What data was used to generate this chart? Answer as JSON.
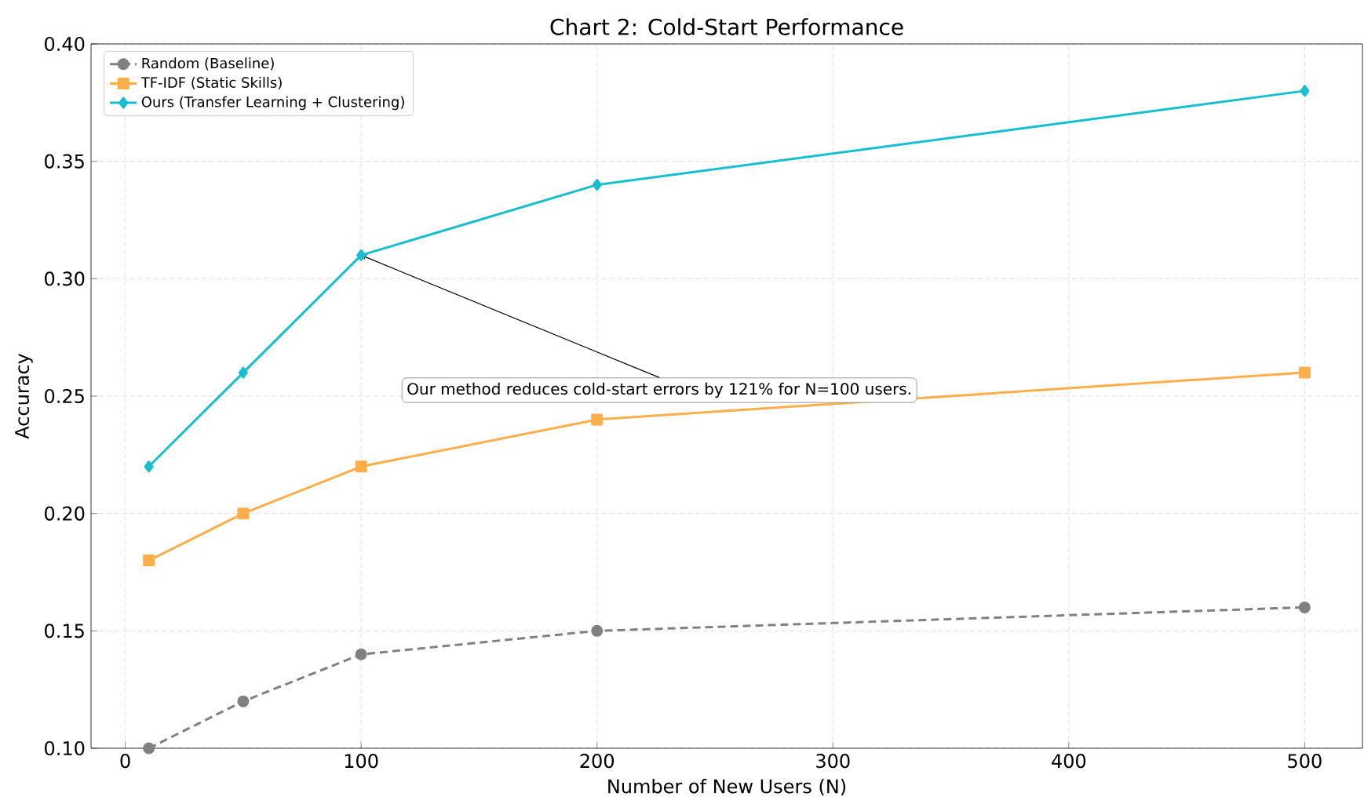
{
  "chart_data": {
    "type": "line",
    "title": "Chart 2: Cold-Start Performance",
    "xlabel": "Number of New Users (N)",
    "ylabel": "Accuracy",
    "x": [
      10,
      50,
      100,
      200,
      500
    ],
    "series": [
      {
        "name": "Random (Baseline)",
        "color": "#808080",
        "values": [
          0.1,
          0.12,
          0.14,
          0.15,
          0.16
        ],
        "marker": "circle",
        "line_style": "dashed"
      },
      {
        "name": "TF-IDF (Static Skills)",
        "color": "#ffae49",
        "values": [
          0.18,
          0.2,
          0.22,
          0.24,
          0.26
        ],
        "marker": "square",
        "line_style": "solid"
      },
      {
        "name": "Ours (Transfer Learning + Clustering)",
        "color": "#17becf",
        "values": [
          0.22,
          0.26,
          0.31,
          0.34,
          0.38
        ],
        "marker": "diamond",
        "line_style": "solid"
      }
    ],
    "xlim": [
      -14.5,
      524.5
    ],
    "ylim": [
      0.1,
      0.4
    ],
    "xticks": [
      0,
      100,
      200,
      300,
      400,
      500
    ],
    "yticks": [
      {
        "value": 0.1,
        "label": "0.10"
      },
      {
        "value": 0.15,
        "label": "0.15"
      },
      {
        "value": 0.2,
        "label": "0.20"
      },
      {
        "value": 0.25,
        "label": "0.25"
      },
      {
        "value": 0.3,
        "label": "0.30"
      },
      {
        "value": 0.35,
        "label": "0.35"
      },
      {
        "value": 0.4,
        "label": "0.40"
      }
    ],
    "annotations": [
      {
        "text": "Our method reduces cold-start errors by 121% for N=100 users.",
        "x": 100,
        "y": 0.31
      }
    ],
    "grid": true,
    "legend": "top left"
  }
}
